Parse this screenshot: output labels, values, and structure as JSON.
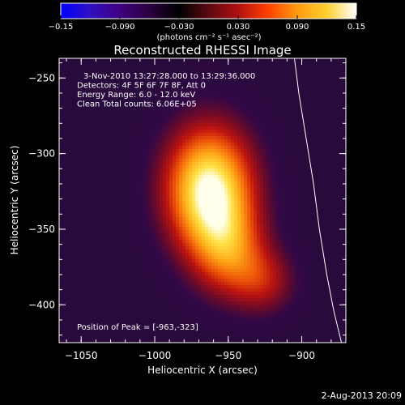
{
  "colorbar": {
    "ticks": [
      -0.15,
      -0.09,
      -0.03,
      0.03,
      0.09,
      0.15
    ],
    "tick_labels": [
      "−0.15",
      "−0.090",
      "−0.030",
      "0.030",
      "0.090",
      "0.15"
    ],
    "units": "(photons cm⁻² s⁻¹ asec⁻²)",
    "stops": [
      "#0000ff",
      "#3010c0",
      "#400080",
      "#2a0040",
      "#000000",
      "#5a0a10",
      "#b01010",
      "#ff4000",
      "#ff9a10",
      "#ffd030",
      "#ffffff"
    ]
  },
  "chart_data": {
    "type": "heatmap",
    "title": "Reconstructed RHESSI Image",
    "xlabel": "Heliocentric X (arcsec)",
    "ylabel": "Heliocentric Y (arcsec)",
    "xlim": [
      -1065,
      -870
    ],
    "ylim": [
      -425,
      -237
    ],
    "xticks": [
      -1050,
      -1000,
      -950,
      -900
    ],
    "yticks": [
      -250,
      -300,
      -350,
      -400
    ],
    "xtick_labels": [
      "−1050",
      "−1000",
      "−950",
      "−900"
    ],
    "ytick_labels": [
      "−250",
      "−300",
      "−350",
      "−400"
    ],
    "peak_position": [
      -963,
      -323
    ],
    "sources": [
      {
        "x": -963,
        "y": -323,
        "sx": 22,
        "sy": 30,
        "amp": 0.15
      },
      {
        "x": -950,
        "y": -365,
        "sx": 18,
        "sy": 22,
        "amp": 0.07
      },
      {
        "x": -925,
        "y": -385,
        "sx": 16,
        "sy": 16,
        "amp": 0.05
      }
    ],
    "limb": {
      "x": [
        -905,
        -902,
        -897,
        -892,
        -888,
        -883,
        -878,
        -873
      ],
      "y": [
        -237,
        -260,
        -290,
        -320,
        -350,
        -380,
        -405,
        -425
      ]
    },
    "annotations": [
      "3-Nov-2010 13:27:28.000 to 13:29:36.000",
      "Detectors: 4F 5F 6F 7F 8F, Att 0",
      "Energy Range: 6.0 - 12.0 keV",
      "Clean    Total counts: 6.06E+05"
    ],
    "peak_label": "Position of Peak = [-963,-323]"
  },
  "footer": {
    "date": "2-Aug-2013 20:09"
  }
}
